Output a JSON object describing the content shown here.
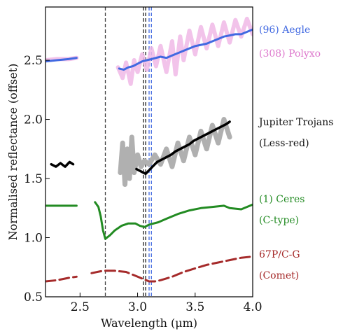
{
  "chart_data": {
    "type": "line",
    "xlabel": "Wavelength (μm)",
    "ylabel": "Normalised reflectance (offset)",
    "xlim": [
      2.2,
      4.0
    ],
    "ylim": [
      0.5,
      2.95
    ],
    "xticks": [
      {
        "value": 2.5,
        "label": "2.5"
      },
      {
        "value": 3.0,
        "label": "3.0"
      },
      {
        "value": 3.5,
        "label": "3.5"
      },
      {
        "value": 4.0,
        "label": "4.0"
      }
    ],
    "yticks": [
      {
        "value": 0.5,
        "label": "0.5"
      },
      {
        "value": 1.0,
        "label": "1.0"
      },
      {
        "value": 1.5,
        "label": "1.5"
      },
      {
        "value": 2.0,
        "label": "2.0"
      },
      {
        "value": 2.5,
        "label": "2.5"
      }
    ],
    "vlines": [
      {
        "x": 2.72,
        "color": "#444444"
      },
      {
        "x": 3.05,
        "color": "#222222"
      },
      {
        "x": 3.07,
        "color": "#222222"
      },
      {
        "x": 3.1,
        "color": "#4169e1"
      },
      {
        "x": 3.12,
        "color": "#4169e1"
      }
    ],
    "labels": [
      {
        "series": "aegle",
        "lines": [
          "(96) Aegle"
        ],
        "color": "#4169e1"
      },
      {
        "series": "polyxo",
        "lines": [
          "(308) Polyxo"
        ],
        "color": "#dd77cc"
      },
      {
        "series": "trojans",
        "lines": [
          "Jupiter Trojans",
          "(Less-red)"
        ],
        "color": "#111111"
      },
      {
        "series": "ceres",
        "lines": [
          "(1) Ceres",
          "(C-type)"
        ],
        "color": "#228b22"
      },
      {
        "series": "comet",
        "lines": [
          "67P/C-G",
          "(Comet)"
        ],
        "color": "#a52a2a"
      }
    ],
    "series": [
      {
        "key": "polyxo",
        "color": "#f0b8e6",
        "width": 6,
        "opacity": 0.85,
        "segments": [
          [
            [
              2.2,
              2.5
            ],
            [
              2.3,
              2.51
            ],
            [
              2.4,
              2.51
            ],
            [
              2.47,
              2.52
            ]
          ],
          [
            [
              2.83,
              2.44
            ],
            [
              2.87,
              2.35
            ],
            [
              2.9,
              2.48
            ],
            [
              2.94,
              2.3
            ],
            [
              2.97,
              2.5
            ],
            [
              3.0,
              2.4
            ],
            [
              3.04,
              2.55
            ],
            [
              3.08,
              2.42
            ],
            [
              3.12,
              2.6
            ],
            [
              3.16,
              2.45
            ],
            [
              3.2,
              2.62
            ],
            [
              3.25,
              2.4
            ],
            [
              3.3,
              2.66
            ],
            [
              3.33,
              2.38
            ],
            [
              3.37,
              2.7
            ],
            [
              3.4,
              2.5
            ],
            [
              3.45,
              2.75
            ],
            [
              3.5,
              2.55
            ],
            [
              3.55,
              2.78
            ],
            [
              3.6,
              2.6
            ],
            [
              3.65,
              2.8
            ],
            [
              3.7,
              2.62
            ],
            [
              3.75,
              2.82
            ],
            [
              3.8,
              2.65
            ],
            [
              3.85,
              2.84
            ],
            [
              3.9,
              2.7
            ],
            [
              3.95,
              2.85
            ],
            [
              4.0,
              2.72
            ]
          ]
        ]
      },
      {
        "key": "aegle",
        "color": "#4169e1",
        "width": 3,
        "opacity": 1,
        "segments": [
          [
            [
              2.2,
              2.49
            ],
            [
              2.3,
              2.5
            ],
            [
              2.4,
              2.51
            ],
            [
              2.47,
              2.52
            ]
          ],
          [
            [
              2.84,
              2.43
            ],
            [
              2.88,
              2.42
            ],
            [
              2.92,
              2.44
            ],
            [
              2.96,
              2.45
            ],
            [
              3.0,
              2.47
            ],
            [
              3.04,
              2.49
            ],
            [
              3.08,
              2.5
            ],
            [
              3.12,
              2.51
            ],
            [
              3.16,
              2.52
            ],
            [
              3.2,
              2.53
            ],
            [
              3.25,
              2.52
            ],
            [
              3.3,
              2.54
            ],
            [
              3.35,
              2.56
            ],
            [
              3.4,
              2.58
            ],
            [
              3.45,
              2.6
            ],
            [
              3.5,
              2.62
            ],
            [
              3.55,
              2.63
            ],
            [
              3.6,
              2.64
            ],
            [
              3.65,
              2.66
            ],
            [
              3.7,
              2.68
            ],
            [
              3.75,
              2.7
            ],
            [
              3.8,
              2.71
            ],
            [
              3.85,
              2.72
            ],
            [
              3.9,
              2.72
            ],
            [
              3.95,
              2.74
            ],
            [
              4.0,
              2.76
            ]
          ]
        ]
      },
      {
        "key": "trojans_band",
        "color": "#b0b0b0",
        "width": 7,
        "opacity": 1,
        "segments": [
          [
            [
              2.85,
              1.55
            ],
            [
              2.87,
              1.8
            ],
            [
              2.89,
              1.45
            ],
            [
              2.91,
              1.75
            ],
            [
              2.93,
              1.5
            ],
            [
              2.95,
              1.85
            ],
            [
              2.97,
              1.55
            ],
            [
              3.0,
              1.7
            ],
            [
              3.03,
              1.6
            ],
            [
              3.06,
              1.65
            ],
            [
              3.1,
              1.62
            ],
            [
              3.15,
              1.7
            ],
            [
              3.2,
              1.62
            ],
            [
              3.25,
              1.75
            ],
            [
              3.3,
              1.6
            ],
            [
              3.35,
              1.8
            ],
            [
              3.4,
              1.65
            ],
            [
              3.45,
              1.85
            ],
            [
              3.5,
              1.7
            ],
            [
              3.55,
              1.9
            ],
            [
              3.6,
              1.75
            ],
            [
              3.65,
              1.95
            ],
            [
              3.7,
              1.8
            ],
            [
              3.75,
              2.0
            ],
            [
              3.8,
              1.85
            ]
          ]
        ]
      },
      {
        "key": "trojans",
        "color": "#000000",
        "width": 3.5,
        "opacity": 1,
        "segments": [
          [
            [
              2.25,
              1.62
            ],
            [
              2.29,
              1.6
            ],
            [
              2.33,
              1.63
            ],
            [
              2.37,
              1.6
            ],
            [
              2.41,
              1.64
            ],
            [
              2.44,
              1.62
            ]
          ],
          [
            [
              2.99,
              1.58
            ],
            [
              3.03,
              1.56
            ],
            [
              3.07,
              1.54
            ],
            [
              3.1,
              1.57
            ],
            [
              3.13,
              1.6
            ],
            [
              3.17,
              1.64
            ],
            [
              3.21,
              1.66
            ],
            [
              3.25,
              1.68
            ],
            [
              3.29,
              1.7
            ],
            [
              3.33,
              1.73
            ],
            [
              3.37,
              1.75
            ],
            [
              3.41,
              1.77
            ],
            [
              3.45,
              1.79
            ],
            [
              3.49,
              1.82
            ],
            [
              3.53,
              1.84
            ],
            [
              3.57,
              1.86
            ],
            [
              3.61,
              1.88
            ],
            [
              3.65,
              1.9
            ],
            [
              3.69,
              1.92
            ],
            [
              3.73,
              1.94
            ],
            [
              3.77,
              1.96
            ],
            [
              3.8,
              1.98
            ]
          ]
        ]
      },
      {
        "key": "ceres",
        "color": "#228b22",
        "width": 3,
        "opacity": 1,
        "segments": [
          [
            [
              2.2,
              1.27
            ],
            [
              2.3,
              1.27
            ],
            [
              2.4,
              1.27
            ],
            [
              2.47,
              1.27
            ]
          ],
          [
            [
              2.63,
              1.3
            ],
            [
              2.66,
              1.26
            ],
            [
              2.68,
              1.18
            ],
            [
              2.7,
              1.06
            ],
            [
              2.72,
              0.99
            ],
            [
              2.76,
              1.02
            ],
            [
              2.8,
              1.06
            ],
            [
              2.86,
              1.1
            ],
            [
              2.92,
              1.12
            ],
            [
              2.98,
              1.12
            ],
            [
              3.02,
              1.1
            ],
            [
              3.06,
              1.09
            ],
            [
              3.1,
              1.11
            ],
            [
              3.18,
              1.13
            ],
            [
              3.25,
              1.16
            ],
            [
              3.35,
              1.2
            ],
            [
              3.45,
              1.23
            ],
            [
              3.55,
              1.25
            ],
            [
              3.65,
              1.26
            ],
            [
              3.75,
              1.27
            ],
            [
              3.8,
              1.25
            ],
            [
              3.9,
              1.24
            ],
            [
              3.95,
              1.26
            ],
            [
              4.0,
              1.28
            ]
          ]
        ]
      },
      {
        "key": "comet",
        "color": "#a52a2a",
        "width": 3,
        "opacity": 1,
        "dash": "14 6",
        "segments": [
          [
            [
              2.2,
              0.63
            ],
            [
              2.3,
              0.64
            ],
            [
              2.4,
              0.66
            ],
            [
              2.47,
              0.67
            ]
          ],
          [
            [
              2.6,
              0.7
            ],
            [
              2.7,
              0.72
            ],
            [
              2.8,
              0.72
            ],
            [
              2.9,
              0.71
            ],
            [
              3.0,
              0.67
            ],
            [
              3.05,
              0.65
            ],
            [
              3.1,
              0.63
            ],
            [
              3.15,
              0.63
            ],
            [
              3.2,
              0.64
            ],
            [
              3.3,
              0.67
            ],
            [
              3.4,
              0.71
            ],
            [
              3.5,
              0.74
            ],
            [
              3.6,
              0.77
            ],
            [
              3.7,
              0.79
            ],
            [
              3.8,
              0.81
            ],
            [
              3.9,
              0.83
            ],
            [
              4.0,
              0.84
            ]
          ]
        ]
      }
    ]
  }
}
